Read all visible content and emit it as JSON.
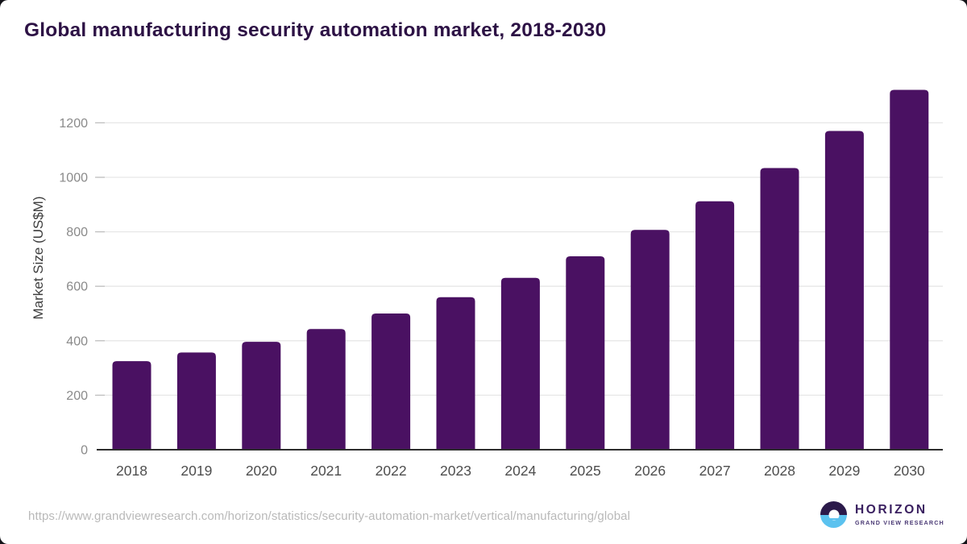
{
  "title": "Global manufacturing security automation market, 2018-2030",
  "source_url": "https://www.grandviewresearch.com/horizon/statistics/security-automation-market/vertical/manufacturing/global",
  "logo": {
    "name": "HORIZON",
    "subtitle": "GRAND VIEW RESEARCH",
    "icon": "sunset-circle-icon",
    "circle_top_color": "#2B1A4A",
    "circle_bottom_color": "#5BC2EF"
  },
  "colors": {
    "bar": "#4A1162",
    "title": "#2D1245",
    "gridline": "#e7e7e7",
    "tick_mark": "#c0c0c0",
    "axis_line": "#2d2d2d",
    "y_tick_label": "#8a8a8a",
    "x_tick_label": "#4d4d4d",
    "background": "#ffffff"
  },
  "chart_data": {
    "type": "bar",
    "title": "Global manufacturing security automation market, 2018-2030",
    "categories": [
      "2018",
      "2019",
      "2020",
      "2021",
      "2022",
      "2023",
      "2024",
      "2025",
      "2026",
      "2027",
      "2028",
      "2029",
      "2030"
    ],
    "values": [
      325,
      357,
      396,
      443,
      500,
      560,
      631,
      710,
      807,
      912,
      1034,
      1170,
      1321
    ],
    "xlabel": "",
    "ylabel": "Market Size (US$M)",
    "yticks": [
      0,
      200,
      400,
      600,
      800,
      1000,
      1200
    ],
    "ylim": [
      0,
      1360
    ],
    "grid": true,
    "legend": "none",
    "bar_color": "#4A1162"
  }
}
